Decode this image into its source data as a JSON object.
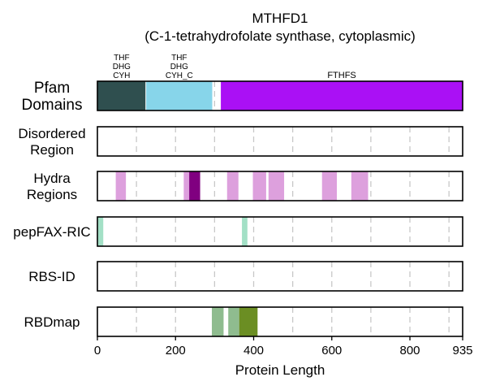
{
  "chart_data": {
    "type": "bar",
    "title": "MTHFD1",
    "subtitle": "(C-1-tetrahydrofolate synthase, cytoplasmic)",
    "xlabel": "Protein Length",
    "xlim": [
      0,
      935
    ],
    "xticks": [
      0,
      200,
      400,
      600,
      800,
      935
    ],
    "gridlines": [
      100,
      200,
      300,
      400,
      500,
      600,
      700,
      800,
      900
    ],
    "tracks": [
      {
        "label": "Pfam\nDomains",
        "segments": [
          {
            "start": 1,
            "end": 123,
            "color": "#2f4f4f",
            "name": "THF\nDHG\nCYH"
          },
          {
            "start": 125,
            "end": 294,
            "color": "#87d5ea",
            "name": "THF\nDHG\nCYH_C"
          },
          {
            "start": 316,
            "end": 935,
            "color": "#aa10f5",
            "name": "FTHFS"
          }
        ]
      },
      {
        "label": "Disordered\nRegion",
        "segments": []
      },
      {
        "label": "Hydra\nRegions",
        "segments": [
          {
            "start": 47,
            "end": 73,
            "color": "#dda0dd"
          },
          {
            "start": 221,
            "end": 235,
            "color": "#dda0dd"
          },
          {
            "start": 235,
            "end": 263,
            "color": "#800080"
          },
          {
            "start": 332,
            "end": 361,
            "color": "#dda0dd"
          },
          {
            "start": 398,
            "end": 432,
            "color": "#dda0dd"
          },
          {
            "start": 438,
            "end": 478,
            "color": "#dda0dd"
          },
          {
            "start": 575,
            "end": 613,
            "color": "#dda0dd"
          },
          {
            "start": 650,
            "end": 693,
            "color": "#dda0dd"
          }
        ]
      },
      {
        "label": "pepFAX-RIC",
        "segments": [
          {
            "start": 0,
            "end": 15,
            "color": "#a3e0c6"
          },
          {
            "start": 370,
            "end": 384,
            "color": "#a3e0c6"
          }
        ]
      },
      {
        "label": "RBS-ID",
        "segments": []
      },
      {
        "label": "RBDmap",
        "segments": [
          {
            "start": 293,
            "end": 323,
            "color": "#8fbc8f"
          },
          {
            "start": 335,
            "end": 363,
            "color": "#8fbc8f"
          },
          {
            "start": 363,
            "end": 410,
            "color": "#6b8e23"
          }
        ]
      }
    ]
  }
}
